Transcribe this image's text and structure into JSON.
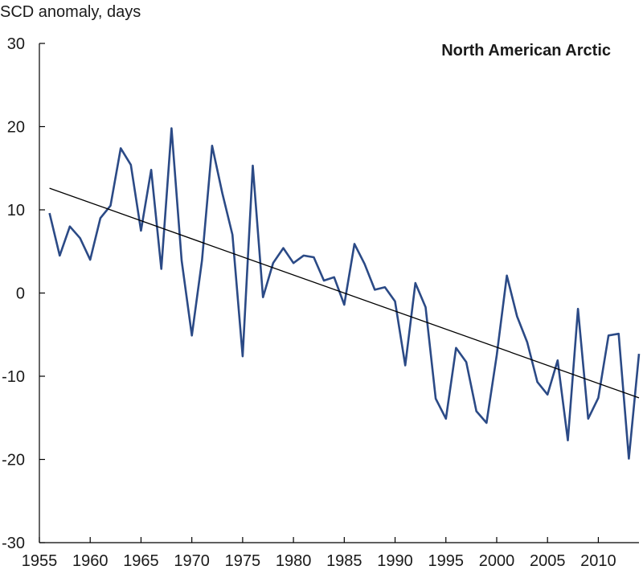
{
  "chart_data": {
    "type": "line",
    "title": "North American Arctic",
    "ylabel": "SCD anomaly, days",
    "xlabel": "",
    "xlim": [
      1955,
      2014
    ],
    "ylim": [
      -30,
      30
    ],
    "xticks": [
      1955,
      1960,
      1965,
      1970,
      1975,
      1980,
      1985,
      1990,
      1995,
      2000,
      2005,
      2010
    ],
    "yticks": [
      -30,
      -20,
      -10,
      0,
      10,
      20,
      30
    ],
    "grid": false,
    "legend": "none",
    "series": [
      {
        "color": "#2b4a86",
        "x": [
          1956,
          1957,
          1958,
          1959,
          1960,
          1961,
          1962,
          1963,
          1964,
          1965,
          1966,
          1967,
          1968,
          1969,
          1970,
          1971,
          1972,
          1973,
          1974,
          1975,
          1976,
          1977,
          1978,
          1979,
          1980,
          1981,
          1982,
          1983,
          1984,
          1985,
          1986,
          1987,
          1988,
          1989,
          1990,
          1991,
          1992,
          1993,
          1994,
          1995,
          1996,
          1997,
          1998,
          1999,
          2000,
          2001,
          2002,
          2003,
          2004,
          2005,
          2006,
          2007,
          2008,
          2009,
          2010,
          2011,
          2012,
          2013,
          2014
        ],
        "values": [
          9.6,
          4.5,
          8.0,
          6.6,
          4.0,
          9.0,
          10.5,
          17.4,
          15.4,
          7.5,
          14.8,
          2.9,
          19.8,
          3.9,
          -5.1,
          3.9,
          17.7,
          12.0,
          7.0,
          -7.6,
          15.3,
          -0.5,
          3.6,
          5.4,
          3.6,
          4.5,
          4.3,
          1.5,
          1.9,
          -1.4,
          5.9,
          3.5,
          0.4,
          0.7,
          -1.0,
          -8.7,
          1.2,
          -1.7,
          -12.7,
          -15.1,
          -6.6,
          -8.3,
          -14.2,
          -15.6,
          -7.5,
          2.1,
          -2.8,
          -5.9,
          -10.7,
          -12.2,
          -8.1,
          -17.7,
          -1.9,
          -15.1,
          -12.6,
          -5.1,
          -4.9,
          -19.9,
          -7.3
        ]
      },
      {
        "name": "",
        "type": "trend",
        "color": "#000000",
        "x": [
          1956,
          2014
        ],
        "values": [
          12.6,
          -12.6
        ]
      }
    ]
  }
}
